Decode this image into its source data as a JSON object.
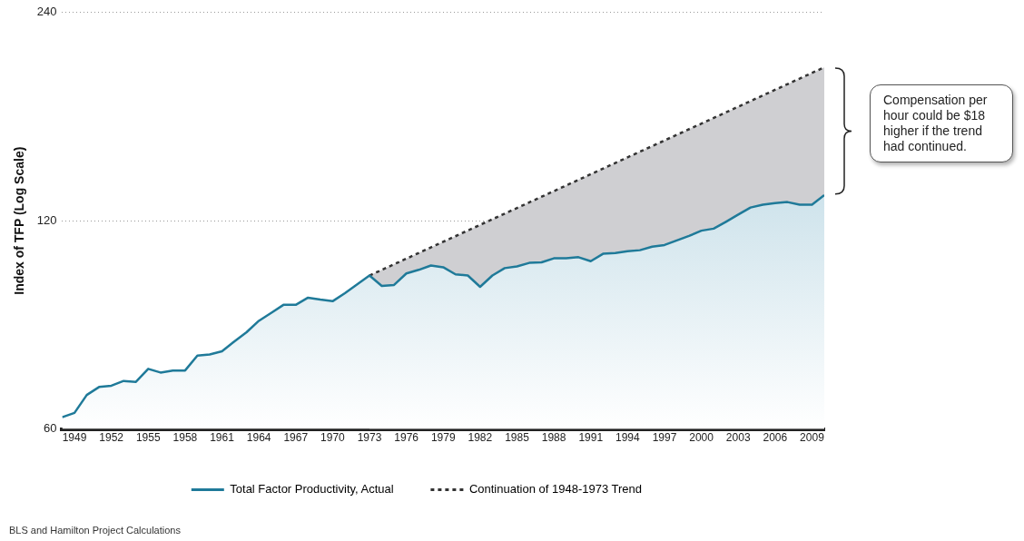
{
  "chart_data": {
    "type": "area",
    "ylabel": "Index of TFP (Log Scale)",
    "x": [
      1948,
      1949,
      1950,
      1951,
      1952,
      1953,
      1954,
      1955,
      1956,
      1957,
      1958,
      1959,
      1960,
      1961,
      1962,
      1963,
      1964,
      1965,
      1966,
      1967,
      1968,
      1969,
      1970,
      1971,
      1972,
      1973,
      1974,
      1975,
      1976,
      1977,
      1978,
      1979,
      1980,
      1981,
      1982,
      1983,
      1984,
      1985,
      1986,
      1987,
      1988,
      1989,
      1990,
      1991,
      1992,
      1993,
      1994,
      1995,
      1996,
      1997,
      1998,
      1999,
      2000,
      2001,
      2002,
      2003,
      2004,
      2005,
      2006,
      2007,
      2008,
      2009,
      2010
    ],
    "series": [
      {
        "name": "Total Factor Productivity, Actual",
        "color": "#1f7a99",
        "values": [
          62.4,
          63.3,
          67.2,
          69.0,
          69.3,
          70.4,
          70.2,
          73.3,
          72.4,
          72.9,
          72.9,
          76.6,
          76.9,
          77.7,
          80.3,
          82.8,
          86.0,
          88.3,
          90.7,
          90.7,
          92.9,
          92.3,
          91.8,
          94.3,
          97.1,
          100.0,
          96.6,
          96.9,
          100.7,
          101.9,
          103.4,
          102.8,
          100.4,
          100.0,
          96.3,
          100.0,
          102.5,
          103.1,
          104.3,
          104.5,
          105.9,
          105.9,
          106.3,
          104.9,
          107.5,
          107.8,
          108.4,
          108.8,
          110.1,
          110.7,
          112.4,
          114.1,
          116.1,
          116.9,
          119.6,
          122.5,
          125.4,
          126.6,
          127.3,
          127.7,
          126.6,
          126.6,
          130.7
        ]
      },
      {
        "name": "Continuation of 1948-1973 Trend",
        "type": "area",
        "color": "#333333",
        "line_style": "dashed",
        "x": [
          1973,
          2010
        ],
        "values": [
          100,
          200
        ]
      }
    ],
    "xlim": [
      1948,
      2010
    ],
    "xticks": [
      1949,
      1952,
      1955,
      1958,
      1961,
      1964,
      1967,
      1970,
      1973,
      1976,
      1979,
      1982,
      1985,
      1988,
      1991,
      1994,
      1997,
      2000,
      2003,
      2006,
      2009
    ],
    "log": true,
    "ylim": [
      60,
      240
    ],
    "yticks": [
      60,
      120,
      240
    ],
    "grid": "y",
    "legend": "bottom",
    "marker": "none",
    "annotations": [
      "Compensation per hour could be $18 higher if the trend had continued.",
      "BLS and Hamilton Project Calculations"
    ]
  }
}
